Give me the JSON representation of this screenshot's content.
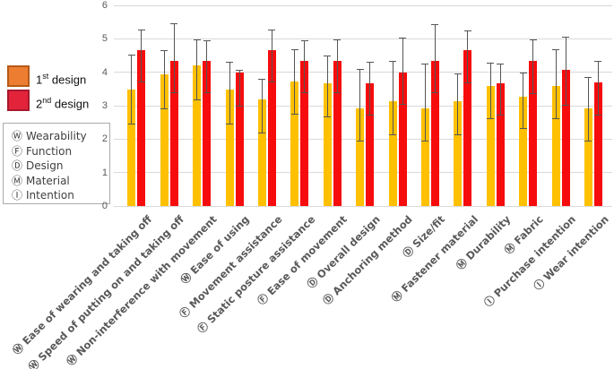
{
  "legend": {
    "first": {
      "num": "1",
      "sup": "st",
      "rest": " design",
      "swatch_color": "#ED7D31",
      "swatch_border": "#B55A18"
    },
    "second": {
      "num": "2",
      "sup": "nd",
      "rest": " design",
      "swatch_color": "#E2233A",
      "swatch_border": "#A6192E"
    }
  },
  "key_box": {
    "items": [
      {
        "symbol": "Ⓦ",
        "label": "Wearability"
      },
      {
        "symbol": "Ⓕ",
        "label": "Function"
      },
      {
        "symbol": "Ⓓ",
        "label": "Design"
      },
      {
        "symbol": "Ⓜ",
        "label": "Material"
      },
      {
        "symbol": "Ⓘ",
        "label": "Intention"
      }
    ]
  },
  "chart_data": {
    "type": "bar",
    "title": "",
    "xlabel": "",
    "ylabel": "",
    "ylim": [
      0,
      6
    ],
    "yticks": [
      0,
      1,
      2,
      3,
      4,
      5,
      6
    ],
    "grid": true,
    "legend_position": "left",
    "error_bars": true,
    "gridline_color": "#d9d9d9",
    "categories": [
      "Ⓦ Ease of wearing and taking off",
      "Ⓦ Speed of putting on and taking off",
      "Ⓦ Non-interference with movement",
      "Ⓦ Ease of using",
      "Ⓕ Movement assistance",
      "Ⓕ Static posture assistance",
      "Ⓕ Ease of movement",
      "Ⓓ Overall design",
      "Ⓓ Anchoring method",
      "Ⓓ Size/fit",
      "Ⓜ Fastener material",
      "Ⓜ Durability",
      "Ⓜ Fabric",
      "Ⓘ Purchase intention",
      "Ⓘ Wear intention"
    ],
    "series": [
      {
        "name": "1st design",
        "color": "#FFC000",
        "values": [
          3.47,
          3.93,
          4.2,
          3.47,
          3.2,
          3.73,
          3.67,
          2.93,
          3.13,
          2.93,
          3.13,
          3.6,
          3.27,
          3.6,
          2.93
        ],
        "err_lo": [
          2.47,
          2.93,
          3.2,
          2.47,
          2.2,
          2.77,
          2.67,
          1.96,
          2.13,
          1.96,
          2.13,
          2.62,
          2.33,
          2.62,
          1.95
        ],
        "err_hi": [
          4.53,
          4.67,
          4.97,
          4.3,
          3.8,
          4.7,
          4.5,
          4.1,
          4.35,
          4.25,
          3.96,
          4.28,
          3.98,
          4.7,
          3.85
        ]
      },
      {
        "name": "2nd design",
        "color": "#F60C0C",
        "values": [
          4.67,
          4.33,
          4.33,
          4.0,
          4.67,
          4.33,
          4.33,
          3.67,
          4.0,
          4.33,
          4.67,
          3.67,
          4.33,
          4.07,
          3.7
        ],
        "err_lo": [
          3.73,
          3.4,
          3.4,
          3.0,
          3.73,
          3.4,
          3.4,
          2.73,
          3.05,
          3.4,
          3.7,
          2.74,
          3.38,
          3.03,
          2.74
        ],
        "err_hi": [
          5.27,
          5.47,
          4.95,
          4.08,
          5.27,
          4.95,
          4.97,
          4.3,
          5.03,
          5.45,
          5.25,
          4.27,
          4.97,
          5.05,
          4.33
        ]
      }
    ]
  }
}
